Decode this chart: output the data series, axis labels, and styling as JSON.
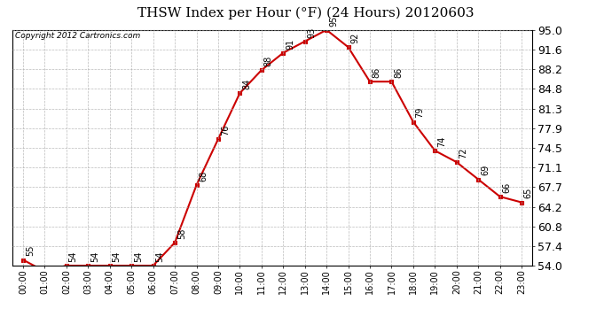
{
  "title": "THSW Index per Hour (°F) (24 Hours) 20120603",
  "copyright": "Copyright 2012 Cartronics.com",
  "hours": [
    "00:00",
    "01:00",
    "02:00",
    "03:00",
    "04:00",
    "05:00",
    "06:00",
    "07:00",
    "08:00",
    "09:00",
    "10:00",
    "11:00",
    "12:00",
    "13:00",
    "14:00",
    "15:00",
    "16:00",
    "17:00",
    "18:00",
    "19:00",
    "20:00",
    "21:00",
    "22:00",
    "23:00"
  ],
  "values": [
    55,
    53,
    54,
    54,
    54,
    54,
    54,
    58,
    68,
    76,
    84,
    88,
    91,
    93,
    95,
    92,
    86,
    86,
    79,
    74,
    72,
    69,
    66,
    65
  ],
  "line_color": "#cc0000",
  "marker": "s",
  "ylim_min": 54.0,
  "ylim_max": 95.0,
  "yticks": [
    54.0,
    57.4,
    60.8,
    64.2,
    67.7,
    71.1,
    74.5,
    77.9,
    81.3,
    84.8,
    88.2,
    91.6,
    95.0
  ],
  "bg_color": "#ffffff",
  "plot_bg_color": "#ffffff",
  "grid_color": "#aaaaaa",
  "title_fontsize": 11,
  "label_fontsize": 7,
  "tick_fontsize": 7,
  "ytick_fontsize": 9,
  "copyright_fontsize": 6.5
}
